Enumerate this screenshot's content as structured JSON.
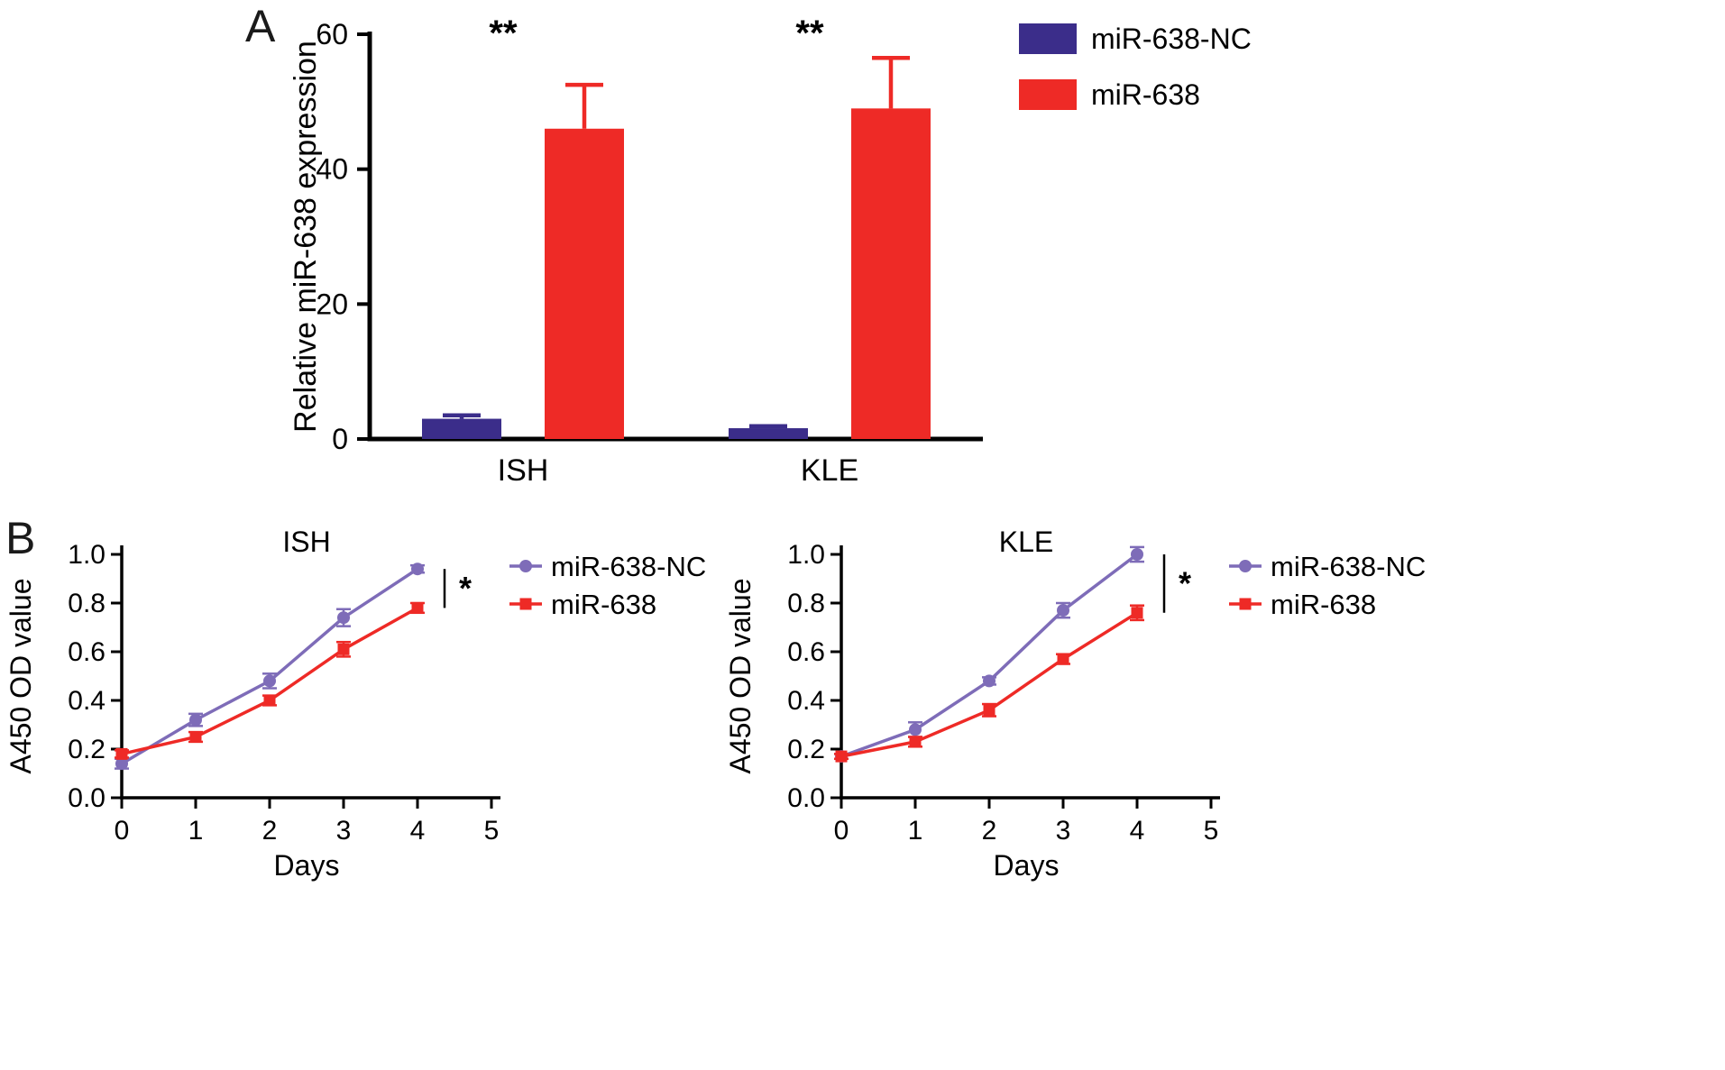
{
  "panels": {
    "a_label": "A",
    "b_label": "B"
  },
  "chart_data": [
    {
      "id": "panel-a",
      "type": "bar",
      "title": "",
      "xlabel": "",
      "ylabel": "Relative miR-638 expression",
      "ylim": [
        0,
        60
      ],
      "yticks": [
        0,
        20,
        40,
        60
      ],
      "categories": [
        "ISH",
        "KLE"
      ],
      "series": [
        {
          "name": "miR-638-NC",
          "color": "#3b2d8a",
          "values": [
            3,
            1.6
          ],
          "errors": [
            0.5,
            0.3
          ]
        },
        {
          "name": "miR-638",
          "color": "#ee2a26",
          "values": [
            46,
            49
          ],
          "errors": [
            6.5,
            7.5
          ]
        }
      ],
      "sig_labels": [
        "**",
        "**"
      ],
      "legend_position": "top-right",
      "legend_text_color": "#000000"
    },
    {
      "id": "panel-b-ish",
      "type": "line",
      "title": "ISH",
      "xlabel": "Days",
      "ylabel": "A450 OD value",
      "xlim": [
        0,
        5
      ],
      "ylim": [
        0,
        1.0
      ],
      "xticks": [
        "0",
        "1",
        "2",
        "3",
        "4",
        "5"
      ],
      "yticks": [
        "0.0",
        "0.2",
        "0.4",
        "0.6",
        "0.8",
        "1.0"
      ],
      "x": [
        0,
        1,
        2,
        3,
        4
      ],
      "series": [
        {
          "name": "miR-638-NC",
          "color": "#7e6cb8",
          "marker": "circle",
          "values": [
            0.14,
            0.32,
            0.48,
            0.74,
            0.94
          ],
          "errors": [
            0.02,
            0.025,
            0.03,
            0.035,
            0.015
          ]
        },
        {
          "name": "miR-638",
          "color": "#ee2a26",
          "marker": "square",
          "values": [
            0.18,
            0.25,
            0.4,
            0.61,
            0.78
          ],
          "errors": [
            0.015,
            0.02,
            0.02,
            0.03,
            0.02
          ]
        }
      ],
      "sig_label": "*",
      "legend_position": "right"
    },
    {
      "id": "panel-b-kle",
      "type": "line",
      "title": "KLE",
      "xlabel": "Days",
      "ylabel": "A450 OD value",
      "xlim": [
        0,
        5
      ],
      "ylim": [
        0,
        1.0
      ],
      "xticks": [
        "0",
        "1",
        "2",
        "3",
        "4",
        "5"
      ],
      "yticks": [
        "0.0",
        "0.2",
        "0.4",
        "0.6",
        "0.8",
        "1.0"
      ],
      "x": [
        0,
        1,
        2,
        3,
        4
      ],
      "series": [
        {
          "name": "miR-638-NC",
          "color": "#7e6cb8",
          "marker": "circle",
          "values": [
            0.17,
            0.28,
            0.48,
            0.77,
            1.0
          ],
          "errors": [
            0.01,
            0.03,
            0.015,
            0.03,
            0.03
          ]
        },
        {
          "name": "miR-638",
          "color": "#ee2a26",
          "marker": "square",
          "values": [
            0.17,
            0.23,
            0.36,
            0.57,
            0.76
          ],
          "errors": [
            0.01,
            0.02,
            0.025,
            0.02,
            0.03
          ]
        }
      ],
      "sig_label": "*",
      "legend_position": "right"
    }
  ]
}
